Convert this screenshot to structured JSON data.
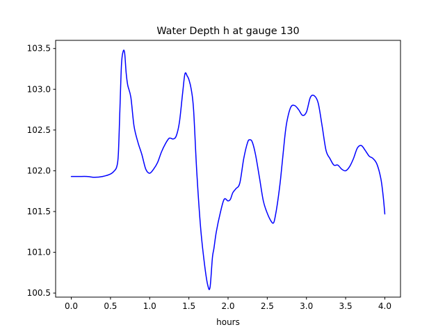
{
  "chart_data": {
    "type": "line",
    "title": "Water Depth h at gauge 130",
    "xlabel": "hours",
    "ylabel": "",
    "xlim": [
      -0.2,
      4.2
    ],
    "ylim": [
      100.45,
      103.6
    ],
    "xticks": [
      0.0,
      0.5,
      1.0,
      1.5,
      2.0,
      2.5,
      3.0,
      3.5,
      4.0
    ],
    "xtick_labels": [
      "0.0",
      "0.5",
      "1.0",
      "1.5",
      "2.0",
      "2.5",
      "3.0",
      "3.5",
      "4.0"
    ],
    "yticks": [
      100.5,
      101.0,
      101.5,
      102.0,
      102.5,
      103.0,
      103.5
    ],
    "ytick_labels": [
      "100.5",
      "101.0",
      "101.5",
      "102.0",
      "102.5",
      "103.0",
      "103.5"
    ],
    "grid": false,
    "legend": "none",
    "series": [
      {
        "color": "#0000ff",
        "x": [
          0.0,
          0.1,
          0.2,
          0.3,
          0.4,
          0.5,
          0.55,
          0.58,
          0.6,
          0.62,
          0.64,
          0.66,
          0.68,
          0.7,
          0.72,
          0.76,
          0.8,
          0.85,
          0.9,
          0.95,
          1.0,
          1.05,
          1.1,
          1.15,
          1.2,
          1.25,
          1.3,
          1.34,
          1.38,
          1.42,
          1.45,
          1.48,
          1.5,
          1.53,
          1.56,
          1.6,
          1.65,
          1.7,
          1.74,
          1.77,
          1.8,
          1.82,
          1.85,
          1.9,
          1.95,
          2.0,
          2.03,
          2.06,
          2.1,
          2.15,
          2.2,
          2.25,
          2.28,
          2.31,
          2.35,
          2.4,
          2.45,
          2.5,
          2.55,
          2.58,
          2.6,
          2.63,
          2.67,
          2.72,
          2.75,
          2.8,
          2.85,
          2.9,
          2.95,
          3.0,
          3.05,
          3.1,
          3.15,
          3.2,
          3.25,
          3.3,
          3.35,
          3.4,
          3.45,
          3.5,
          3.55,
          3.6,
          3.65,
          3.7,
          3.75,
          3.8,
          3.85,
          3.9,
          3.95,
          3.98,
          4.0
        ],
        "y": [
          101.93,
          101.93,
          101.93,
          101.92,
          101.93,
          101.96,
          102.0,
          102.05,
          102.2,
          102.75,
          103.3,
          103.46,
          103.45,
          103.2,
          103.05,
          102.9,
          102.55,
          102.35,
          102.2,
          102.02,
          101.97,
          102.02,
          102.1,
          102.23,
          102.33,
          102.4,
          102.39,
          102.43,
          102.6,
          102.95,
          103.19,
          103.16,
          103.12,
          103.0,
          102.75,
          102.0,
          101.3,
          100.85,
          100.6,
          100.57,
          100.93,
          101.05,
          101.25,
          101.48,
          101.65,
          101.63,
          101.65,
          101.73,
          101.78,
          101.85,
          102.15,
          102.35,
          102.38,
          102.35,
          102.2,
          101.92,
          101.63,
          101.48,
          101.38,
          101.36,
          101.43,
          101.6,
          101.9,
          102.38,
          102.6,
          102.78,
          102.8,
          102.75,
          102.68,
          102.72,
          102.9,
          102.92,
          102.83,
          102.55,
          102.25,
          102.15,
          102.07,
          102.07,
          102.02,
          102.0,
          102.05,
          102.15,
          102.28,
          102.31,
          102.25,
          102.18,
          102.15,
          102.08,
          101.9,
          101.68,
          101.47
        ]
      }
    ]
  }
}
